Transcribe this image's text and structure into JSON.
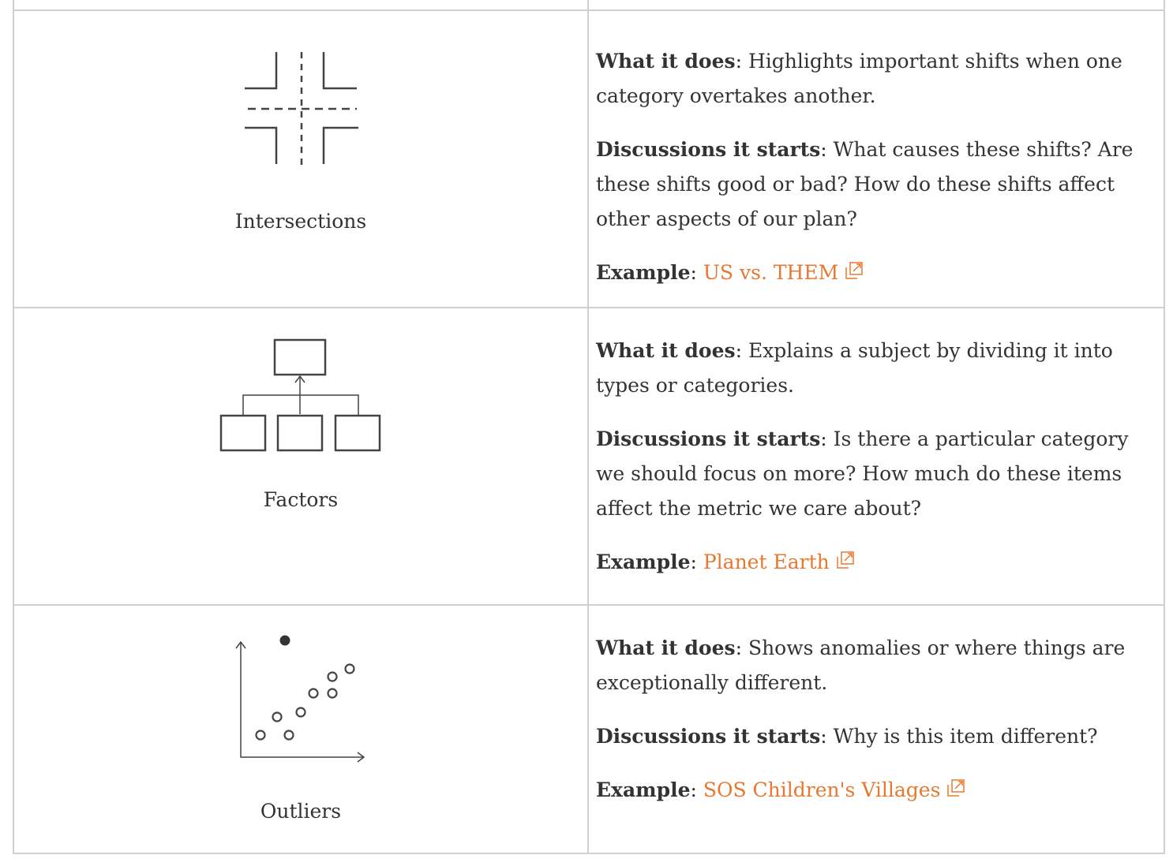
{
  "rows": [
    {
      "caption": "Intersections",
      "icon": "intersections-icon",
      "what_label": "What it does",
      "what_text": ": Highlights important shifts when one category overtakes another.",
      "disc_label": "Discussions it starts",
      "disc_text": ": What causes these shifts? Are these shifts good or bad? How do these shifts affect other aspects of our plan?",
      "example_label": "Example",
      "example_sep": ": ",
      "example_link": "US vs. THEM"
    },
    {
      "caption": "Factors",
      "icon": "factors-icon",
      "what_label": "What it does",
      "what_text": ": Explains a subject by dividing it into types or categories.",
      "disc_label": "Discussions it starts",
      "disc_text": ": Is there a particular category we should focus on more? How much do these items affect the metric we care about?",
      "example_label": "Example",
      "example_sep": ": ",
      "example_link": "Planet Earth"
    },
    {
      "caption": "Outliers",
      "icon": "outliers-icon",
      "what_label": "What it does",
      "what_text": ": Shows anomalies or where things are exceptionally different.",
      "disc_label": "Discussions it starts",
      "disc_text": ": Why is this item different?",
      "example_label": "Example",
      "example_sep": ": ",
      "example_link": "SOS Children's Villages"
    }
  ],
  "colors": {
    "link": "#e8782e",
    "text": "#333333",
    "border": "#cfcfcf",
    "icon_stroke": "#444444"
  }
}
